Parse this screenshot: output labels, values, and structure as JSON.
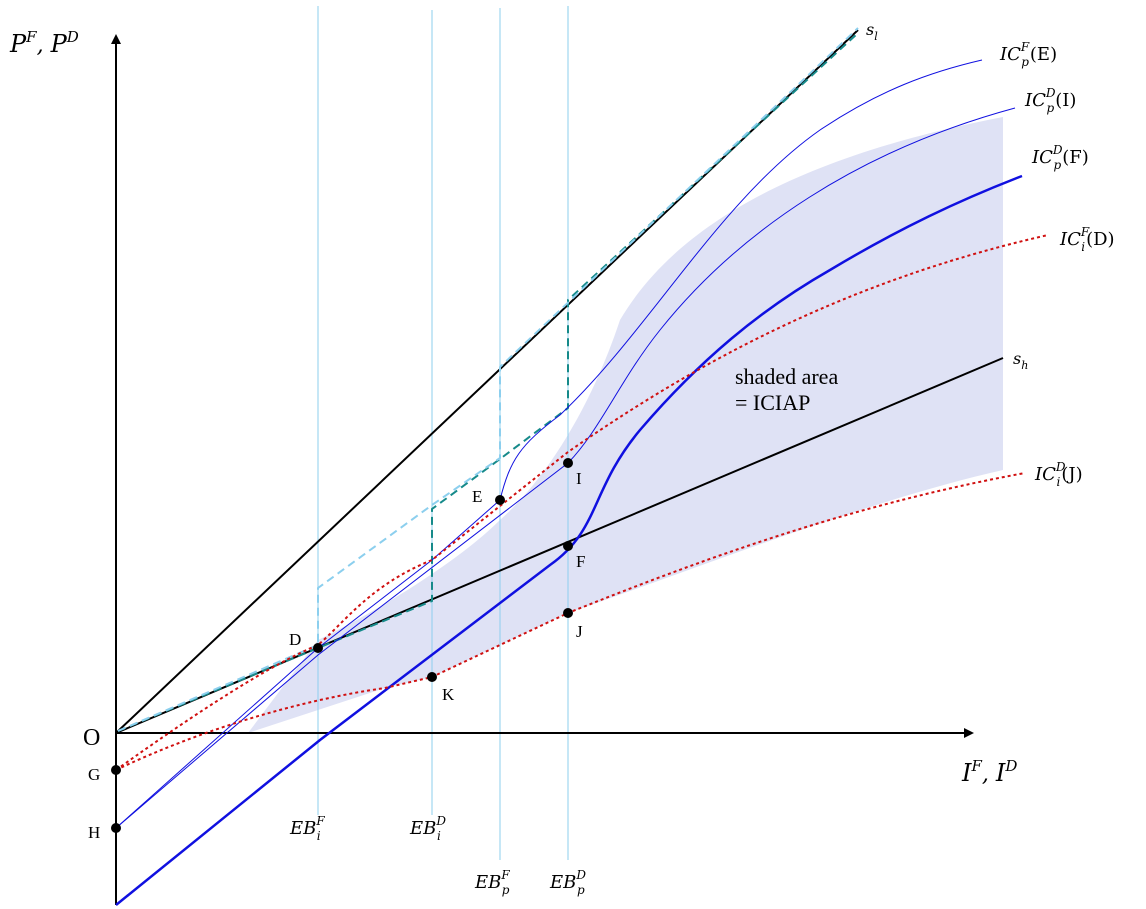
{
  "axes": {
    "y_label_main": "P",
    "y_sup1": "F",
    "y_sep": ", ",
    "y_label2": "P",
    "y_sup2": "D",
    "x_label_main": "I",
    "x_sup1": "F",
    "x_sep": ", ",
    "x_label2": "I",
    "x_sup2": "D",
    "origin": "O"
  },
  "lines": {
    "sl": "s",
    "sl_sub": "l",
    "sh": "s",
    "sh_sub": "h"
  },
  "curves": {
    "icpFE": {
      "base": "IC",
      "sup": "F",
      "sub": "p",
      "arg": "(E)"
    },
    "icpDI": {
      "base": "IC",
      "sup": "D",
      "sub": "p",
      "arg": "(I)"
    },
    "icpDF": {
      "base": "IC",
      "sup": "D",
      "sub": "p",
      "arg": "(F)"
    },
    "iciFD": {
      "base": "IC",
      "sup": "F",
      "sub": "i",
      "arg": "(D)"
    },
    "iciDJ": {
      "base": "IC",
      "sup": "D",
      "sub": "i",
      "arg": "(J)"
    }
  },
  "breakpoints": {
    "ebiF": {
      "base": "EB",
      "sup": "F",
      "sub": "i"
    },
    "ebiD": {
      "base": "EB",
      "sup": "D",
      "sub": "i"
    },
    "ebpF": {
      "base": "EB",
      "sup": "F",
      "sub": "p"
    },
    "ebpD": {
      "base": "EB",
      "sup": "D",
      "sub": "p"
    }
  },
  "points": {
    "D": "D",
    "E": "E",
    "F": "F",
    "G": "G",
    "H": "H",
    "I": "I",
    "J": "J",
    "K": "K"
  },
  "annotation": {
    "line1": "shaded area",
    "line2": "= ICIAP"
  },
  "colors": {
    "shade": "#dfe2f5",
    "blue": "#1010e0",
    "red": "#d01010",
    "lightblue": "#8ccfee",
    "teal": "#168a8a",
    "black": "#000000"
  }
}
